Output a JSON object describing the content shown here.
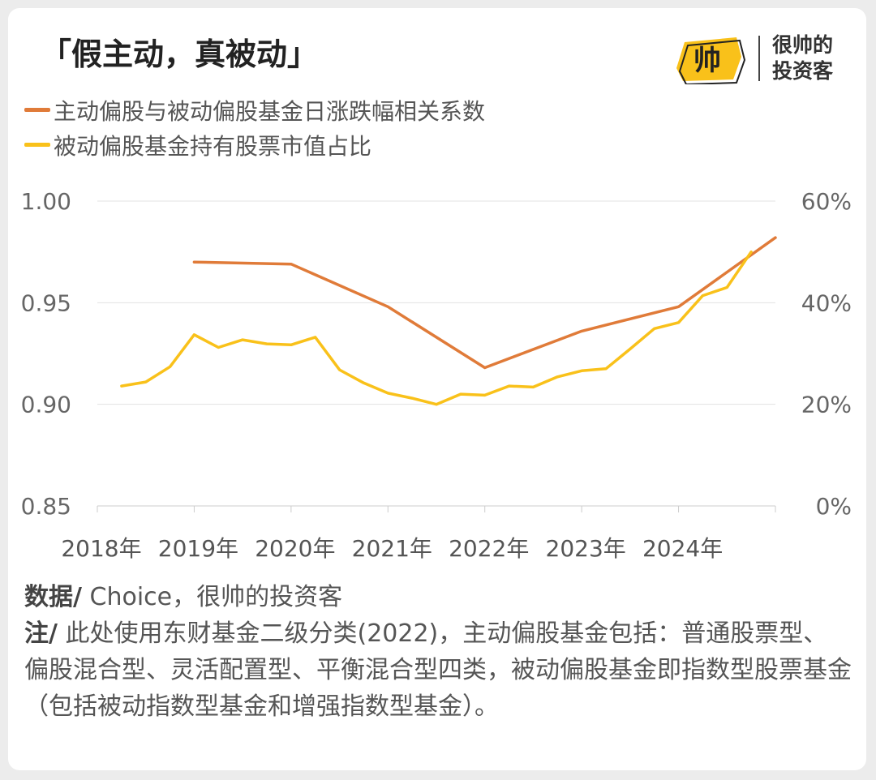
{
  "title": "「假主动，真被动」",
  "logo": {
    "text_line1": "很帅的",
    "text_line2": "投资客",
    "mark": "帅"
  },
  "colors": {
    "orange": "#e07b39",
    "yellow": "#f9c11a",
    "grid": "#e3e3e3",
    "axis_text": "#666666"
  },
  "chart_data": {
    "type": "line",
    "title": "「假主动，真被动」",
    "x_tick_labels": [
      "2018年",
      "2019年",
      "2020年",
      "2021年",
      "2022年",
      "2023年",
      "2024年"
    ],
    "xlim": [
      2018,
      2025
    ],
    "y_left": {
      "lim": [
        0.85,
        1.0
      ],
      "ticks": [
        "0.85",
        "0.90",
        "0.95",
        "1.00"
      ],
      "tick_values": [
        0.85,
        0.9,
        0.95,
        1.0
      ]
    },
    "y_right": {
      "lim": [
        0,
        60
      ],
      "ticks": [
        "0%",
        "20%",
        "40%",
        "60%"
      ],
      "tick_values": [
        0,
        20,
        40,
        60
      ],
      "unit": "%"
    },
    "grid": true,
    "legend_position": "top-left",
    "series": [
      {
        "name": "主动偏股与被动偏股基金日涨跌幅相关系数",
        "axis": "left",
        "color": "#e07b39",
        "x": [
          2019.0,
          2020.0,
          2021.0,
          2022.0,
          2023.0,
          2024.0,
          2025.0
        ],
        "values": [
          0.97,
          0.969,
          0.948,
          0.918,
          0.936,
          0.948,
          0.982
        ]
      },
      {
        "name": "被动偏股基金持有股票市值占比",
        "axis": "right",
        "color": "#f9c11a",
        "x": [
          2018.25,
          2018.5,
          2018.75,
          2019.0,
          2019.25,
          2019.5,
          2019.75,
          2020.0,
          2020.25,
          2020.5,
          2020.75,
          2021.0,
          2021.25,
          2021.5,
          2021.75,
          2022.0,
          2022.25,
          2022.5,
          2022.75,
          2023.0,
          2023.25,
          2023.5,
          2023.75,
          2024.0,
          2024.25,
          2024.5,
          2024.75
        ],
        "values": [
          23.6,
          24.4,
          27.4,
          33.7,
          31.2,
          32.7,
          31.9,
          31.7,
          33.2,
          26.8,
          24.2,
          22.2,
          21.2,
          20.0,
          22.0,
          21.8,
          23.6,
          23.4,
          25.4,
          26.6,
          27.0,
          30.9,
          34.9,
          36.1,
          41.4,
          43.0,
          50.0
        ]
      }
    ]
  },
  "footer": {
    "source_label": "数据/",
    "source_text": " Choice，很帅的投资客",
    "note_label": "注/",
    "note_text": " 此处使用东财基金二级分类(2022)，主动偏股基金包括：普通股票型、偏股混合型、灵活配置型、平衡混合型四类，被动偏股基金即指数型股票基金（包括被动指数型基金和增强指数型基金）。"
  }
}
